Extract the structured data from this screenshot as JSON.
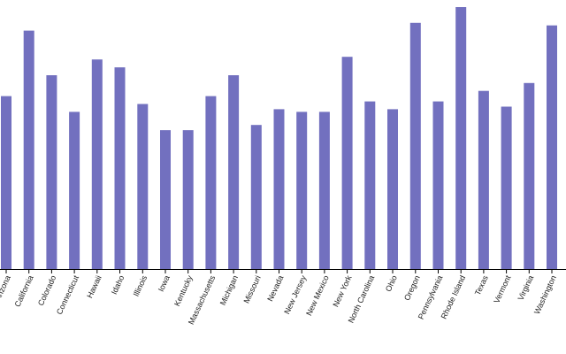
{
  "chart_data": {
    "type": "bar",
    "title": "",
    "xlabel": "",
    "ylabel": "",
    "ylim": [
      0,
      100
    ],
    "grid": false,
    "bar_color": "#7270bf",
    "categories": [
      "Arizona",
      "California",
      "Colorado",
      "Connecticut",
      "Hawaii",
      "Idaho",
      "Illinois",
      "Iowa",
      "Kentucky",
      "Massachusetts",
      "Michigan",
      "Missouri",
      "Nevada",
      "New Jersey",
      "New Mexico",
      "New York",
      "North Carolina",
      "Ohio",
      "Oregon",
      "Pennsylvania",
      "Rhode Island",
      "Texas",
      "Vermont",
      "Virginia",
      "Washington"
    ],
    "values": [
      66,
      91,
      74,
      60,
      80,
      77,
      63,
      53,
      53,
      66,
      74,
      55,
      61,
      60,
      60,
      81,
      64,
      61,
      94,
      64,
      100,
      68,
      62,
      71,
      93
    ]
  }
}
